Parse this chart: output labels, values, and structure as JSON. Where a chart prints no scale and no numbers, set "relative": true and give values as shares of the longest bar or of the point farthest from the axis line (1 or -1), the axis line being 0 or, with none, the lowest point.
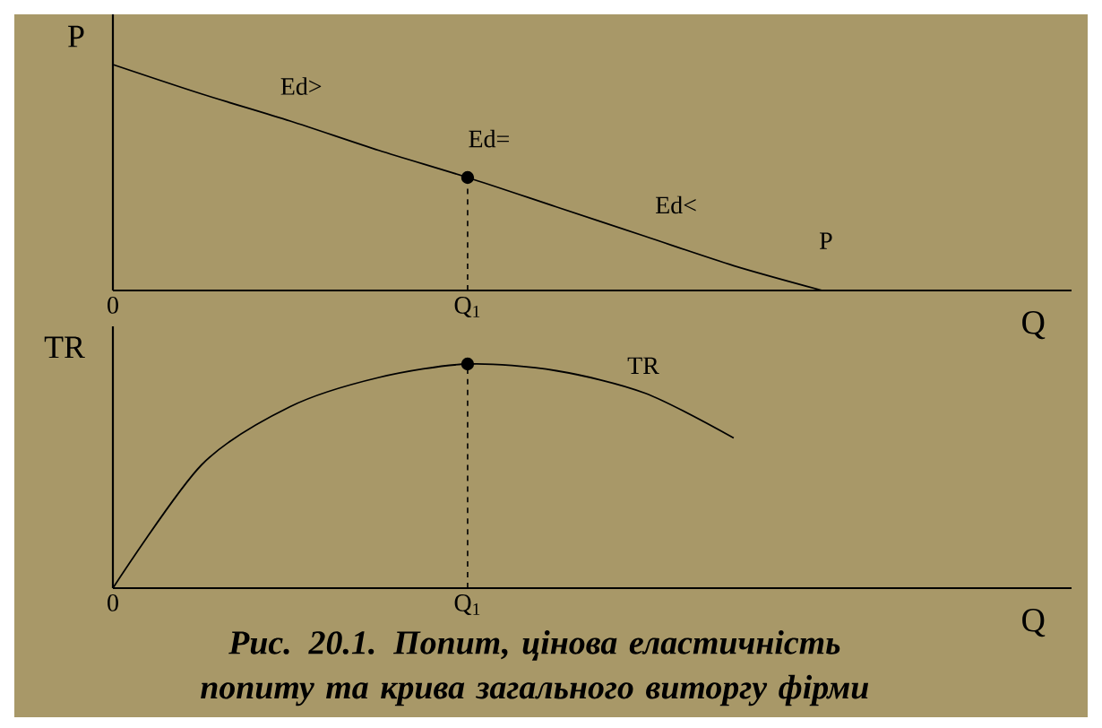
{
  "chart_data": [
    {
      "type": "line",
      "relative": true,
      "ylabel": "P",
      "xlabel": "Q",
      "categories": [
        "0",
        null,
        null,
        null,
        "Q$_{1}$",
        null,
        null,
        null,
        null,
        null,
        null
      ],
      "tick_labels": "x",
      "marker": "none",
      "line_style": "solid",
      "series": [
        {
          "name": "P",
          "color": "#000000",
          "values": [
            1,
            0.87,
            0.75,
            0.62,
            0.5,
            0.37,
            0.24,
            0.11,
            0,
            null,
            null
          ]
        },
        {
          "type": "lollipop",
          "line_style": "dashed",
          "marker": "circle",
          "color": "#000000",
          "values": [
            null,
            null,
            null,
            null,
            0.5,
            null,
            null,
            null,
            null,
            null,
            null
          ]
        }
      ],
      "annotations": [
        "Ed>",
        "Ed=",
        "Ed<"
      ]
    },
    {
      "type": "line",
      "relative": true,
      "ylabel": "TR",
      "xlabel": "Q",
      "categories": [
        "0",
        null,
        null,
        null,
        "Q$_{1}$",
        null,
        null,
        null,
        null,
        null,
        null
      ],
      "tick_labels": "x",
      "marker": "none",
      "line_style": "solid",
      "series": [
        {
          "name": "TR",
          "color": "#000000",
          "values": [
            0,
            0.55,
            0.81,
            0.94,
            1,
            0.97,
            0.87,
            0.67,
            null,
            null,
            null
          ]
        },
        {
          "type": "lollipop",
          "line_style": "dashed",
          "marker": "circle",
          "color": "#000000",
          "values": [
            null,
            null,
            null,
            null,
            1,
            null,
            null,
            null,
            null,
            null,
            null
          ]
        }
      ],
      "annotations": [
        "Рис. 20.1. Попит, цінова еластичність попиту та крива загального виторгу фірми"
      ]
    }
  ]
}
